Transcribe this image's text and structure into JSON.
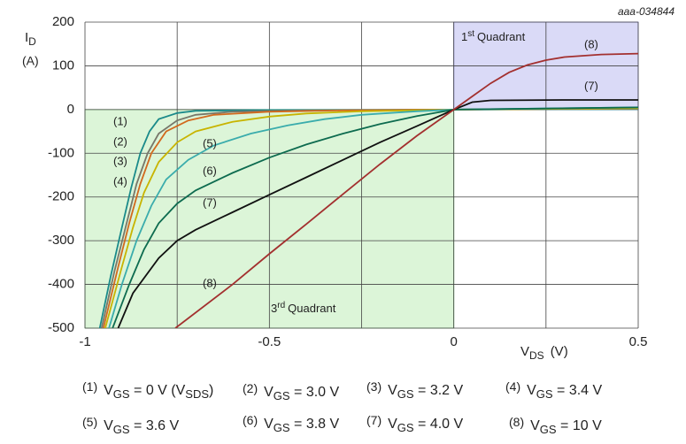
{
  "chart_data": {
    "type": "line",
    "annotation": "aaa-034844",
    "ylabel": {
      "main": "I",
      "sub": "D",
      "unit": "(A)"
    },
    "xlabel": {
      "main": "V",
      "sub": "DS",
      "unit": "(V)"
    },
    "xlim": [
      -1,
      0.5
    ],
    "ylim": [
      -500,
      200
    ],
    "xticks": [
      -1,
      -0.5,
      0,
      0.5
    ],
    "xgrid": [
      -0.75,
      -0.25,
      0.25
    ],
    "yticks": [
      200,
      100,
      0,
      -100,
      -200,
      -300,
      -400,
      -500
    ],
    "grid": true,
    "regions": [
      {
        "x": [
          0,
          0.5
        ],
        "y": [
          0,
          200
        ],
        "color": "#dadaf7",
        "label": {
          "number": "1",
          "suffix": "st",
          "text": "Quadrant"
        }
      },
      {
        "x": [
          -1,
          0
        ],
        "y": [
          -500,
          0
        ],
        "color": "#dcf5d8",
        "label": {
          "number": "3",
          "suffix": "rd",
          "text": "Quadrant"
        }
      }
    ],
    "series": [
      {
        "label": "(1)",
        "name": [
          {
            "t": "V"
          },
          {
            "sub": "GS"
          },
          {
            "t": " = 0 V (V"
          },
          {
            "sub": "SDS"
          },
          {
            "t": ")"
          }
        ],
        "color": "#1a8a8a",
        "x": [
          -0.96,
          -0.93,
          -0.9,
          -0.875,
          -0.85,
          -0.825,
          -0.8,
          -0.75,
          -0.7,
          -0.5,
          0,
          0.5
        ],
        "values": [
          -500,
          -380,
          -270,
          -180,
          -100,
          -50,
          -22,
          -8,
          -3,
          -1,
          0,
          1
        ]
      },
      {
        "label": "(2)",
        "name": [
          {
            "t": "V"
          },
          {
            "sub": "GS"
          },
          {
            "t": " = 3.0 V"
          }
        ],
        "color": "#77776a",
        "x": [
          -0.955,
          -0.92,
          -0.89,
          -0.86,
          -0.83,
          -0.8,
          -0.75,
          -0.7,
          -0.6,
          -0.4,
          0,
          0.5
        ],
        "values": [
          -500,
          -370,
          -270,
          -170,
          -100,
          -55,
          -25,
          -12,
          -5,
          -2,
          0,
          2
        ]
      },
      {
        "label": "(3)",
        "name": [
          {
            "t": "V"
          },
          {
            "sub": "GS"
          },
          {
            "t": " = 3.2 V"
          }
        ],
        "color": "#d2691e",
        "x": [
          -0.95,
          -0.91,
          -0.88,
          -0.85,
          -0.82,
          -0.78,
          -0.72,
          -0.65,
          -0.5,
          -0.3,
          0,
          0.5
        ],
        "values": [
          -500,
          -360,
          -260,
          -170,
          -100,
          -50,
          -25,
          -12,
          -5,
          -2,
          0,
          3
        ]
      },
      {
        "label": "(4)",
        "name": [
          {
            "t": "V"
          },
          {
            "sub": "GS"
          },
          {
            "t": " = 3.4 V"
          }
        ],
        "color": "#c8b400",
        "x": [
          -0.945,
          -0.9,
          -0.87,
          -0.84,
          -0.8,
          -0.75,
          -0.7,
          -0.6,
          -0.5,
          -0.4,
          -0.25,
          0,
          0.5
        ],
        "values": [
          -500,
          -360,
          -270,
          -190,
          -120,
          -75,
          -50,
          -28,
          -16,
          -9,
          -4,
          0,
          3
        ]
      },
      {
        "label": "(5)",
        "name": [
          {
            "t": "V"
          },
          {
            "sub": "GS"
          },
          {
            "t": " = 3.6 V"
          }
        ],
        "color": "#3aacac",
        "x": [
          -0.935,
          -0.9,
          -0.86,
          -0.82,
          -0.78,
          -0.72,
          -0.65,
          -0.55,
          -0.45,
          -0.35,
          -0.25,
          -0.1,
          0,
          0.5
        ],
        "values": [
          -500,
          -400,
          -300,
          -220,
          -160,
          -115,
          -82,
          -55,
          -36,
          -22,
          -12,
          -4,
          0,
          5
        ]
      },
      {
        "label": "(6)",
        "name": [
          {
            "t": "V"
          },
          {
            "sub": "GS"
          },
          {
            "t": " = 3.8 V"
          }
        ],
        "color": "#0d6b4f",
        "x": [
          -0.925,
          -0.88,
          -0.84,
          -0.8,
          -0.75,
          -0.7,
          -0.6,
          -0.5,
          -0.4,
          -0.3,
          -0.2,
          -0.1,
          0,
          0.5
        ],
        "values": [
          -500,
          -400,
          -320,
          -260,
          -215,
          -185,
          -145,
          -110,
          -80,
          -55,
          -33,
          -15,
          0,
          5
        ]
      },
      {
        "label": "(7)",
        "name": [
          {
            "t": "V"
          },
          {
            "sub": "GS"
          },
          {
            "t": " = 4.0 V"
          }
        ],
        "color": "#111111",
        "x": [
          -0.91,
          -0.87,
          -0.8,
          -0.75,
          -0.7,
          -0.6,
          -0.5,
          -0.4,
          -0.3,
          -0.2,
          -0.1,
          0,
          0.05,
          0.1,
          0.3,
          0.5
        ],
        "values": [
          -500,
          -420,
          -340,
          -300,
          -275,
          -235,
          -195,
          -155,
          -115,
          -75,
          -38,
          0,
          17,
          21,
          22,
          22
        ]
      },
      {
        "label": "(8)",
        "name": [
          {
            "t": "V"
          },
          {
            "sub": "GS"
          },
          {
            "t": " = 10 V"
          }
        ],
        "color": "#a3302f",
        "x": [
          -0.755,
          -0.6,
          -0.5,
          -0.4,
          -0.3,
          -0.2,
          -0.1,
          0,
          0.05,
          0.1,
          0.15,
          0.2,
          0.25,
          0.3,
          0.4,
          0.5
        ],
        "values": [
          -500,
          -400,
          -330,
          -262,
          -193,
          -125,
          -60,
          0,
          30,
          60,
          85,
          102,
          113,
          120,
          126,
          128
        ]
      }
    ]
  }
}
